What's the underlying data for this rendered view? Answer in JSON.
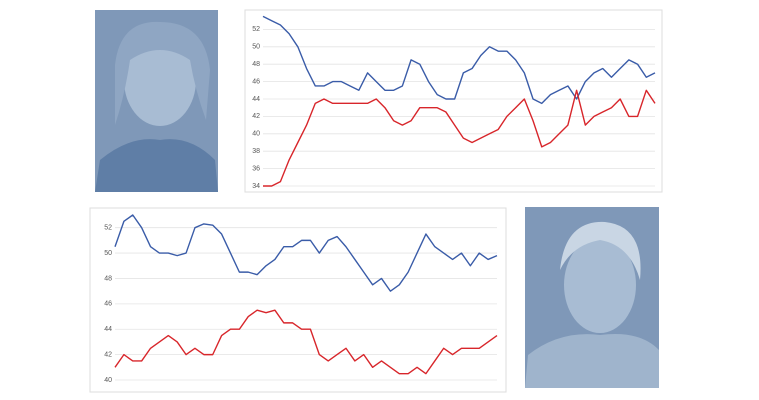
{
  "chart_data": [
    {
      "type": "line",
      "ylim": [
        34,
        54
      ],
      "yticks": [
        34,
        36,
        38,
        40,
        42,
        44,
        46,
        48,
        50,
        52
      ],
      "grid": true,
      "series": [
        {
          "color": "#3a5ca8",
          "values": [
            53.5,
            53,
            52.5,
            51.5,
            50,
            47.5,
            45.5,
            45.5,
            46,
            46,
            45.5,
            45,
            47,
            46,
            45,
            45,
            45.5,
            48.5,
            48,
            46,
            44.5,
            44,
            44,
            47,
            47.5,
            49,
            50,
            49.5,
            49.5,
            48.5,
            47,
            44,
            43.5,
            44.5,
            45,
            45.5,
            44,
            46,
            47,
            47.5,
            46.5,
            47.5,
            48.5,
            48,
            46.5,
            47
          ]
        },
        {
          "color": "#d8262b",
          "values": [
            34,
            34,
            34.5,
            37,
            39,
            41,
            43.5,
            44,
            43.5,
            43.5,
            43.5,
            43.5,
            43.5,
            44,
            43,
            41.5,
            41,
            41.5,
            43,
            43,
            43,
            42.5,
            41,
            39.5,
            39,
            39.5,
            40,
            40.5,
            42,
            43,
            44,
            41.5,
            38.5,
            39,
            40,
            41,
            45,
            41,
            42,
            42.5,
            43,
            44,
            42,
            42,
            45,
            43.5
          ]
        }
      ]
    },
    {
      "type": "line",
      "ylim": [
        40,
        53
      ],
      "yticks": [
        40,
        42,
        44,
        46,
        48,
        50,
        52
      ],
      "grid": true,
      "series": [
        {
          "color": "#3a5ca8",
          "values": [
            50.5,
            52.5,
            53,
            52,
            50.5,
            50,
            50,
            49.8,
            50,
            52,
            52.3,
            52.2,
            51.5,
            50,
            48.5,
            48.5,
            48.3,
            49,
            49.5,
            50.5,
            50.5,
            51,
            51,
            50,
            51,
            51.3,
            50.5,
            49.5,
            48.5,
            47.5,
            48,
            47,
            47.5,
            48.5,
            50,
            51.5,
            50.5,
            50,
            49.5,
            50,
            49,
            50,
            49.5,
            49.8
          ]
        },
        {
          "color": "#d8262b",
          "values": [
            41,
            42,
            41.5,
            41.5,
            42.5,
            43,
            43.5,
            43,
            42,
            42.5,
            42,
            42,
            43.5,
            44,
            44,
            45,
            45.5,
            45.3,
            45.5,
            44.5,
            44.5,
            44,
            44,
            42,
            41.5,
            42,
            42.5,
            41.5,
            42,
            41,
            41.5,
            41,
            40.5,
            40.5,
            41,
            40.5,
            41.5,
            42.5,
            42,
            42.5,
            42.5,
            42.5,
            43,
            43.5
          ]
        }
      ]
    }
  ]
}
